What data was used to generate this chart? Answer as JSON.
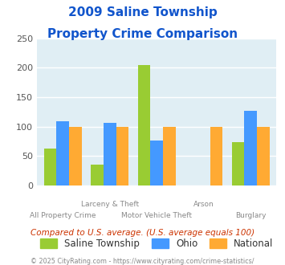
{
  "title_line1": "2009 Saline Township",
  "title_line2": "Property Crime Comparison",
  "categories": [
    "All Property Crime",
    "Larceny & Theft",
    "Motor Vehicle Theft",
    "Arson",
    "Burglary"
  ],
  "saline": [
    63,
    35,
    205,
    0,
    74
  ],
  "ohio": [
    109,
    106,
    77,
    0,
    127
  ],
  "national": [
    100,
    100,
    100,
    100,
    100
  ],
  "colors": {
    "saline": "#99cc33",
    "ohio": "#4499ff",
    "national": "#ffaa33"
  },
  "ylim": [
    0,
    250
  ],
  "yticks": [
    0,
    50,
    100,
    150,
    200,
    250
  ],
  "bg_color": "#e0eef4",
  "title_color": "#1155cc",
  "legend_labels": [
    "Saline Township",
    "Ohio",
    "National"
  ],
  "subtitle": "Compared to U.S. average. (U.S. average equals 100)",
  "footer": "© 2025 CityRating.com - https://www.cityrating.com/crime-statistics/",
  "subtitle_color": "#cc3300",
  "footer_color": "#888888",
  "cat_labels_top": [
    "",
    "Larceny & Theft",
    "",
    "Arson",
    ""
  ],
  "cat_labels_bottom": [
    "All Property Crime",
    "",
    "Motor Vehicle Theft",
    "",
    "Burglary"
  ]
}
